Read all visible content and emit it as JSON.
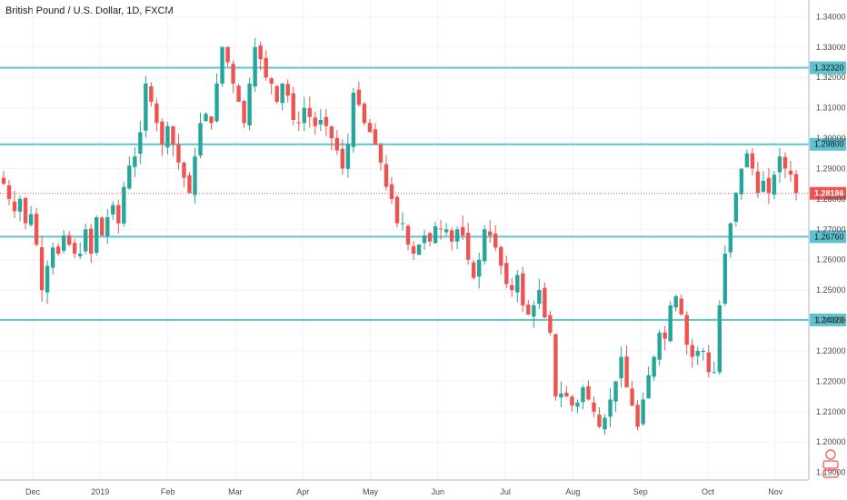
{
  "title": "British Pound / U.S. Dollar, 1D, FXCM",
  "colors": {
    "up": "#26a69a",
    "down": "#ef5350",
    "level": "#5fc3cf",
    "grid": "#f0f3fa",
    "axis": "#b2b5be"
  },
  "chart_data": {
    "type": "candlestick",
    "title": "British Pound / U.S. Dollar, 1D, FXCM",
    "ylim": [
      1.1875,
      1.3455
    ],
    "y_ticks": [
      "1.34000",
      "1.33000",
      "1.32000",
      "1.31000",
      "1.30000",
      "1.29000",
      "1.28000",
      "1.27000",
      "1.26000",
      "1.25000",
      "1.24000",
      "1.23000",
      "1.22000",
      "1.21000",
      "1.20000",
      "1.19000"
    ],
    "x_ticks": [
      "Dec",
      "2019",
      "Feb",
      "Mar",
      "Apr",
      "May",
      "Jun",
      "Jul",
      "Aug",
      "Sep",
      "Oct",
      "Nov"
    ],
    "grid": true,
    "levels": [
      {
        "label": "1.32320",
        "value": 1.3232
      },
      {
        "label": "1.29800",
        "value": 1.298
      },
      {
        "label": "1.26760",
        "value": 1.2676
      },
      {
        "label": "1.24020",
        "value": 1.2402
      }
    ],
    "last_price": {
      "label": "1.28186",
      "value": 1.28186
    },
    "close_path": [
      1.285,
      1.28,
      1.276,
      1.28,
      1.272,
      1.275,
      1.265,
      1.25,
      1.258,
      1.264,
      1.262,
      1.268,
      1.265,
      1.262,
      1.262,
      1.27,
      1.262,
      1.274,
      1.268,
      1.274,
      1.278,
      1.272,
      1.284,
      1.291,
      1.294,
      1.302,
      1.318,
      1.312,
      1.305,
      1.298,
      1.304,
      1.298,
      1.292,
      1.287,
      1.282,
      1.294,
      1.305,
      1.308,
      1.305,
      1.318,
      1.33,
      1.325,
      1.318,
      1.312,
      1.305,
      1.318,
      1.33,
      1.326,
      1.32,
      1.318,
      1.312,
      1.318,
      1.314,
      1.306,
      1.305,
      1.31,
      1.307,
      1.304,
      1.306,
      1.304,
      1.3,
      1.296,
      1.29,
      1.298,
      1.315,
      1.311,
      1.305,
      1.302,
      1.298,
      1.292,
      1.284,
      1.28,
      1.272,
      1.272,
      1.265,
      1.262,
      1.265,
      1.268,
      1.266,
      1.271,
      1.27,
      1.27,
      1.266,
      1.27,
      1.268,
      1.26,
      1.254,
      1.26,
      1.27,
      1.268,
      1.264,
      1.258,
      1.252,
      1.25,
      1.255,
      1.245,
      1.242,
      1.245,
      1.25,
      1.241,
      1.236,
      1.215,
      1.216,
      1.215,
      1.212,
      1.213,
      1.218,
      1.214,
      1.21,
      1.205,
      1.208,
      1.214,
      1.22,
      1.228,
      1.218,
      1.212,
      1.205,
      1.214,
      1.222,
      1.228,
      1.236,
      1.234,
      1.245,
      1.248,
      1.242,
      1.232,
      1.228,
      1.23,
      1.23,
      1.223,
      1.223,
      1.245,
      1.262,
      1.272,
      1.282,
      1.29,
      1.295,
      1.29,
      1.282,
      1.286,
      1.282,
      1.288,
      1.294,
      1.29,
      1.288,
      1.282
    ]
  }
}
